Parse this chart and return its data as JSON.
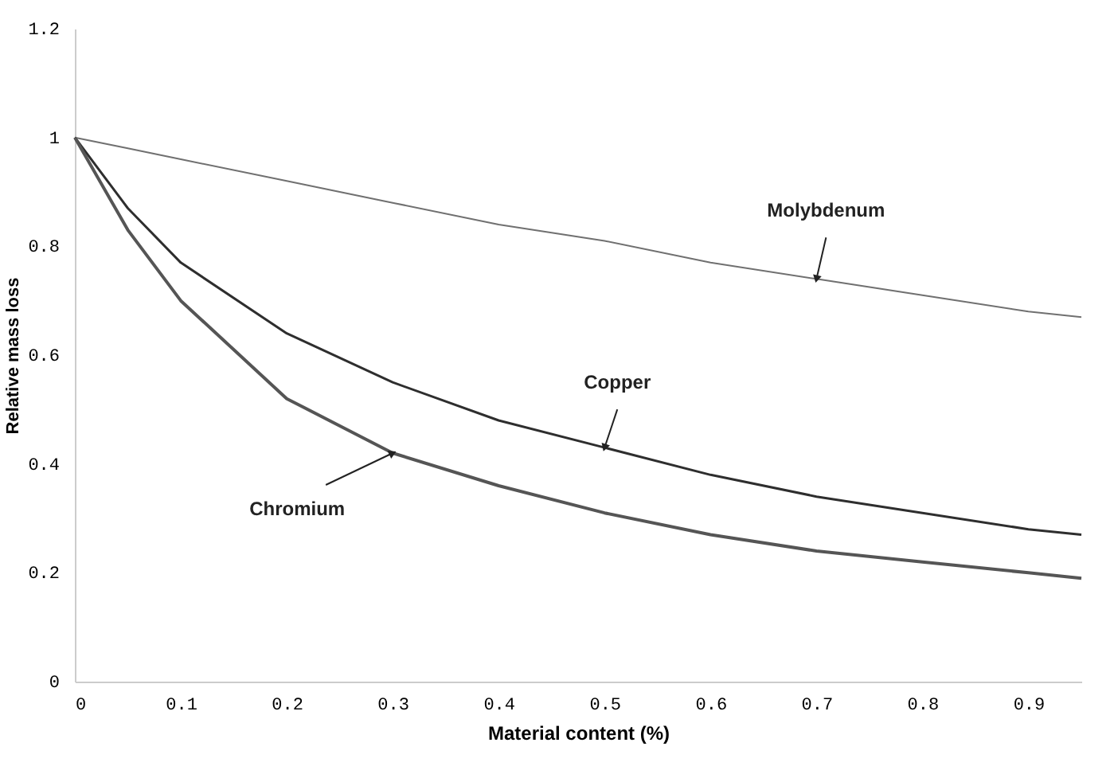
{
  "chart_data": {
    "type": "line",
    "xlabel": "Material content (%)",
    "ylabel": "Relative mass loss",
    "x": [
      0,
      0.05,
      0.1,
      0.2,
      0.3,
      0.4,
      0.5,
      0.6,
      0.7,
      0.8,
      0.9,
      0.95
    ],
    "series": [
      {
        "name": "Molybdenum",
        "color": "#707070",
        "values": [
          1,
          0.98,
          0.96,
          0.92,
          0.88,
          0.84,
          0.81,
          0.77,
          0.74,
          0.71,
          0.68,
          0.67
        ]
      },
      {
        "name": "Copper",
        "color": "#2e2e2e",
        "values": [
          1,
          0.87,
          0.77,
          0.64,
          0.55,
          0.48,
          0.43,
          0.38,
          0.34,
          0.31,
          0.28,
          0.27
        ]
      },
      {
        "name": "Chromium",
        "color": "#555555",
        "values": [
          1,
          0.83,
          0.7,
          0.52,
          0.42,
          0.36,
          0.31,
          0.27,
          0.24,
          0.22,
          0.2,
          0.19
        ]
      }
    ],
    "xlim": [
      0,
      0.95
    ],
    "xticks": [
      0,
      0.1,
      0.2,
      0.3,
      0.4,
      0.5,
      0.6,
      0.7,
      0.8,
      0.9
    ],
    "ylim": [
      0,
      1.2
    ],
    "yticks": [
      0,
      0.2,
      0.4,
      0.6,
      0.8,
      1,
      1.2
    ],
    "grid": false,
    "marker": "none",
    "line_style": "solid"
  }
}
